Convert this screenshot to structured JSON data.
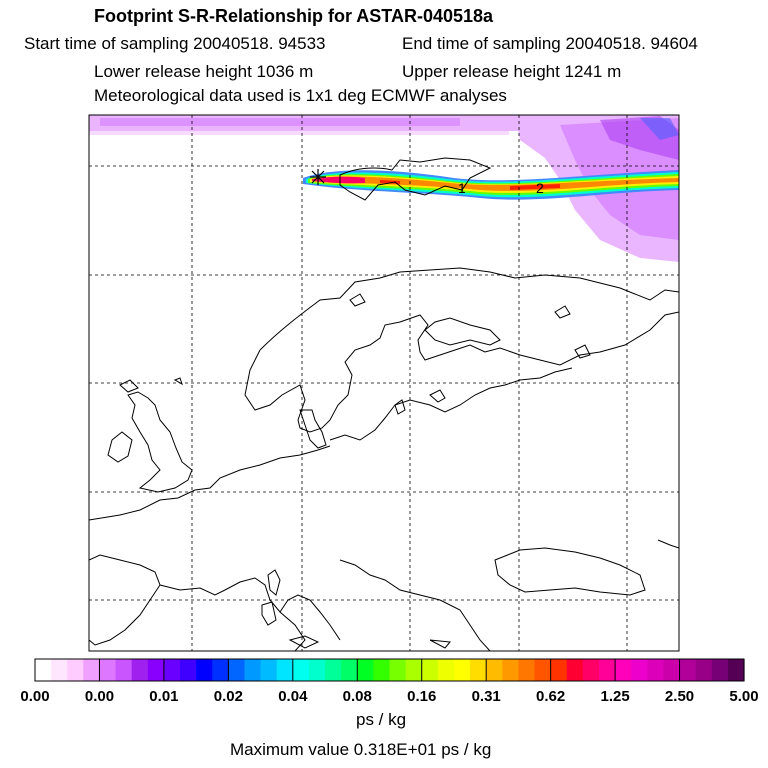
{
  "header": {
    "title": "Footprint S-R-Relationship for ASTAR-040518a",
    "start_time": "Start time of sampling 20040518. 94533",
    "end_time": "End time of sampling 20040518. 94604",
    "lower_height": "Lower release height 1036 m",
    "upper_height": "Upper release height 1241 m",
    "met_data": "Meteorological data used is 1x1 deg ECMWF analyses"
  },
  "map": {
    "plume_colors": [
      "#ff00ff",
      "#ff2200",
      "#ffaa00",
      "#ffee00",
      "#66ff00",
      "#00ffcc",
      "#4488ff"
    ],
    "background_field_color": "#cc66ff",
    "station_markers": [
      "1",
      "2"
    ]
  },
  "colorbar": {
    "labels": [
      "0.00",
      "0.00",
      "0.01",
      "0.02",
      "0.04",
      "0.08",
      "0.16",
      "0.31",
      "0.62",
      "1.25",
      "2.50",
      "5.00"
    ],
    "colors": [
      "#ffffff",
      "#ffe6ff",
      "#ffccff",
      "#f0a0ff",
      "#dd77ff",
      "#c855ff",
      "#a020f0",
      "#8a00ff",
      "#6a00ff",
      "#4000ff",
      "#0000ff",
      "#0030ff",
      "#0066ff",
      "#0099ff",
      "#00bbff",
      "#00e5ff",
      "#00ffee",
      "#00ffcc",
      "#00ff99",
      "#00ff66",
      "#00ff22",
      "#33ff00",
      "#77ff00",
      "#aaff00",
      "#ccff00",
      "#eeff00",
      "#ffff00",
      "#ffdd00",
      "#ffbb00",
      "#ff9900",
      "#ff7700",
      "#ff5500",
      "#ff3300",
      "#ff0033",
      "#ff0066",
      "#ff0099",
      "#ff00bb",
      "#ee00cc",
      "#dd00bb",
      "#cc00aa",
      "#b00099",
      "#990088",
      "#770077",
      "#550055"
    ],
    "unit": "ps / kg",
    "max_value": "Maximum value  0.318E+01 ps / kg"
  }
}
